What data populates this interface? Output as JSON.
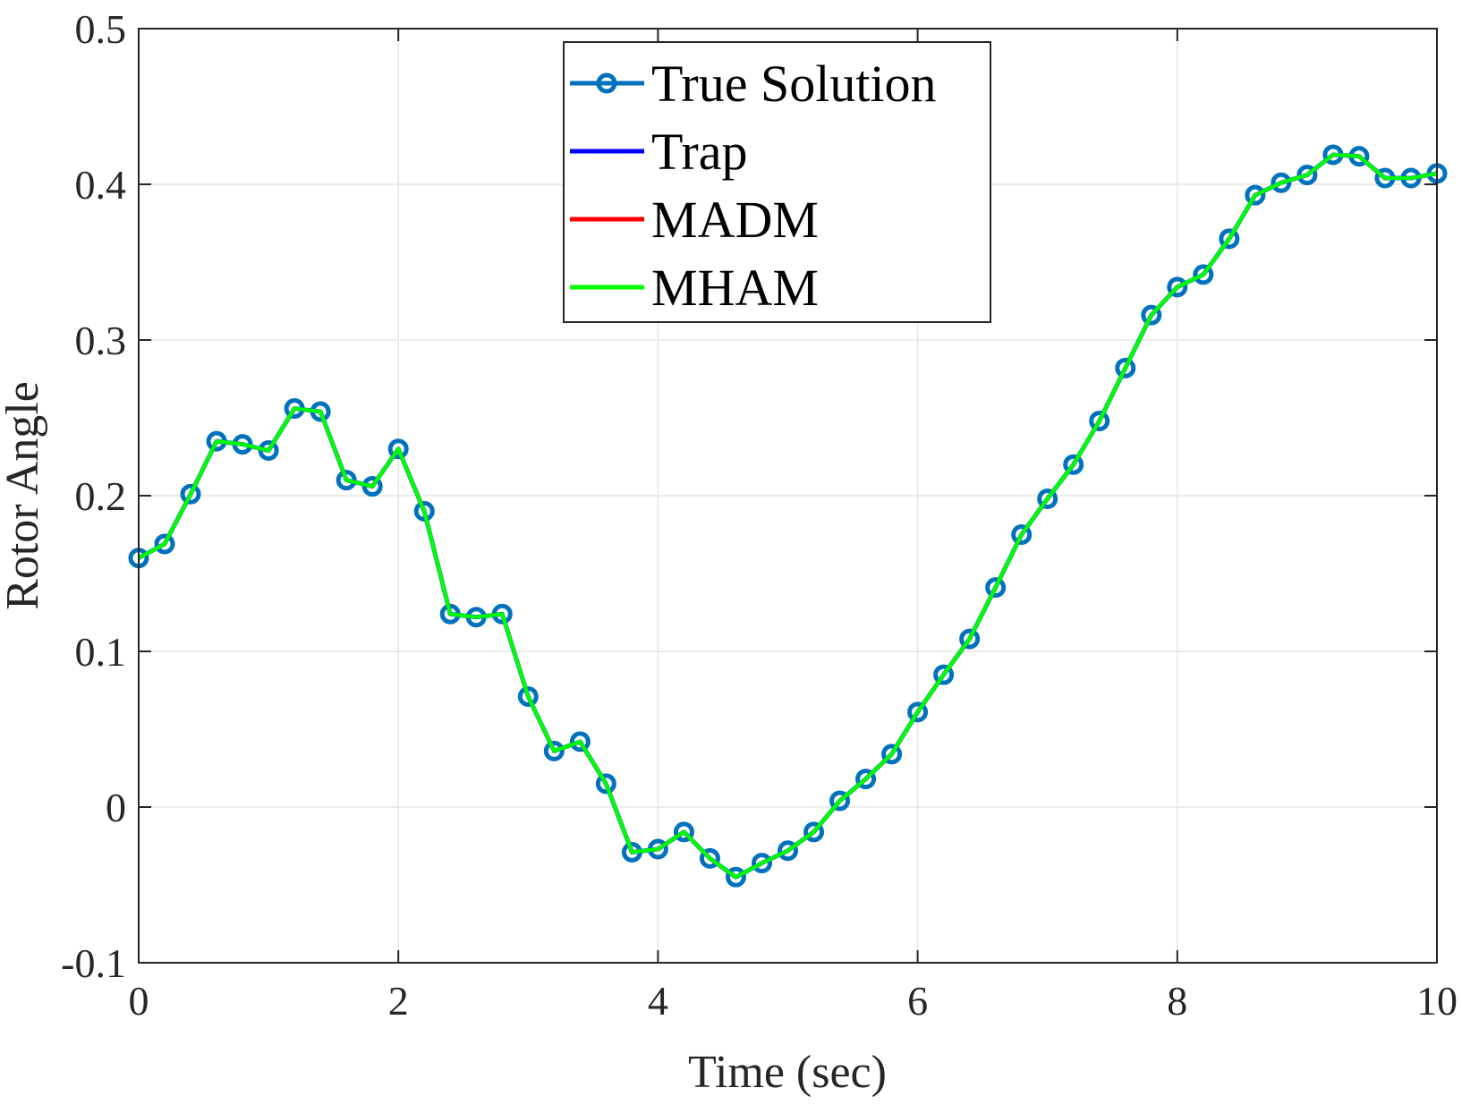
{
  "chart_data": {
    "type": "line",
    "title": "",
    "xlabel": "Time (sec)",
    "ylabel": "Rotor Angle",
    "xlim": [
      0,
      10
    ],
    "ylim": [
      -0.1,
      0.5
    ],
    "x_ticks": [
      0,
      2,
      4,
      6,
      8,
      10
    ],
    "x_tick_labels": [
      "0",
      "2",
      "4",
      "6",
      "8",
      "10"
    ],
    "y_ticks": [
      -0.1,
      0,
      0.1,
      0.2,
      0.3,
      0.4,
      0.5
    ],
    "y_tick_labels": [
      "-0.1",
      "0",
      "0.1",
      "0.2",
      "0.3",
      "0.4",
      "0.5"
    ],
    "grid": true,
    "legend_position": "top-center",
    "x": [
      0,
      0.2,
      0.4,
      0.6,
      0.8,
      1.0,
      1.2,
      1.4,
      1.6,
      1.8,
      2.0,
      2.2,
      2.4,
      2.6,
      2.8,
      3.0,
      3.2,
      3.4,
      3.6,
      3.8,
      4.0,
      4.2,
      4.4,
      4.6,
      4.8,
      5.0,
      5.2,
      5.4,
      5.6,
      5.8,
      6.0,
      6.2,
      6.4,
      6.6,
      6.8,
      7.0,
      7.2,
      7.4,
      7.6,
      7.8,
      8.0,
      8.2,
      8.4,
      8.6,
      8.8,
      9.0,
      9.2,
      9.4,
      9.6,
      9.8,
      10.0
    ],
    "series": [
      {
        "name": "True Solution",
        "color": "#0072BD",
        "marker": "circle",
        "values": [
          0.16,
          0.169,
          0.201,
          0.235,
          0.233,
          0.229,
          0.256,
          0.254,
          0.21,
          0.206,
          0.23,
          0.19,
          0.124,
          0.122,
          0.124,
          0.071,
          0.036,
          0.042,
          0.015,
          -0.029,
          -0.027,
          -0.016,
          -0.033,
          -0.045,
          -0.036,
          -0.028,
          -0.016,
          0.004,
          0.018,
          0.034,
          0.061,
          0.085,
          0.108,
          0.141,
          0.175,
          0.198,
          0.22,
          0.248,
          0.282,
          0.316,
          0.334,
          0.342,
          0.365,
          0.393,
          0.401,
          0.406,
          0.419,
          0.418,
          0.404,
          0.404,
          0.407
        ]
      },
      {
        "name": "Trap",
        "color": "#0000FF",
        "values": [
          0.16,
          0.169,
          0.201,
          0.235,
          0.233,
          0.229,
          0.256,
          0.254,
          0.21,
          0.206,
          0.23,
          0.19,
          0.124,
          0.122,
          0.124,
          0.071,
          0.036,
          0.042,
          0.015,
          -0.029,
          -0.027,
          -0.016,
          -0.033,
          -0.045,
          -0.036,
          -0.028,
          -0.016,
          0.004,
          0.018,
          0.034,
          0.061,
          0.085,
          0.108,
          0.141,
          0.175,
          0.198,
          0.22,
          0.248,
          0.282,
          0.316,
          0.334,
          0.342,
          0.365,
          0.393,
          0.401,
          0.406,
          0.419,
          0.418,
          0.404,
          0.404,
          0.407
        ]
      },
      {
        "name": "MADM",
        "color": "#FF0000",
        "values": [
          0.16,
          0.169,
          0.201,
          0.235,
          0.233,
          0.229,
          0.256,
          0.254,
          0.21,
          0.206,
          0.23,
          0.19,
          0.124,
          0.122,
          0.124,
          0.071,
          0.036,
          0.042,
          0.015,
          -0.029,
          -0.027,
          -0.016,
          -0.033,
          -0.045,
          -0.036,
          -0.028,
          -0.016,
          0.004,
          0.018,
          0.034,
          0.061,
          0.085,
          0.108,
          0.141,
          0.175,
          0.198,
          0.22,
          0.248,
          0.282,
          0.316,
          0.334,
          0.342,
          0.365,
          0.393,
          0.401,
          0.406,
          0.419,
          0.418,
          0.404,
          0.404,
          0.407
        ]
      },
      {
        "name": "MHAM",
        "color": "#00FF00",
        "values": [
          0.16,
          0.169,
          0.201,
          0.235,
          0.233,
          0.229,
          0.256,
          0.254,
          0.21,
          0.206,
          0.23,
          0.19,
          0.124,
          0.122,
          0.124,
          0.071,
          0.036,
          0.042,
          0.015,
          -0.029,
          -0.027,
          -0.016,
          -0.033,
          -0.045,
          -0.036,
          -0.028,
          -0.016,
          0.004,
          0.018,
          0.034,
          0.061,
          0.085,
          0.108,
          0.141,
          0.175,
          0.198,
          0.22,
          0.248,
          0.282,
          0.316,
          0.334,
          0.342,
          0.365,
          0.393,
          0.401,
          0.406,
          0.419,
          0.418,
          0.404,
          0.404,
          0.407
        ]
      }
    ]
  }
}
